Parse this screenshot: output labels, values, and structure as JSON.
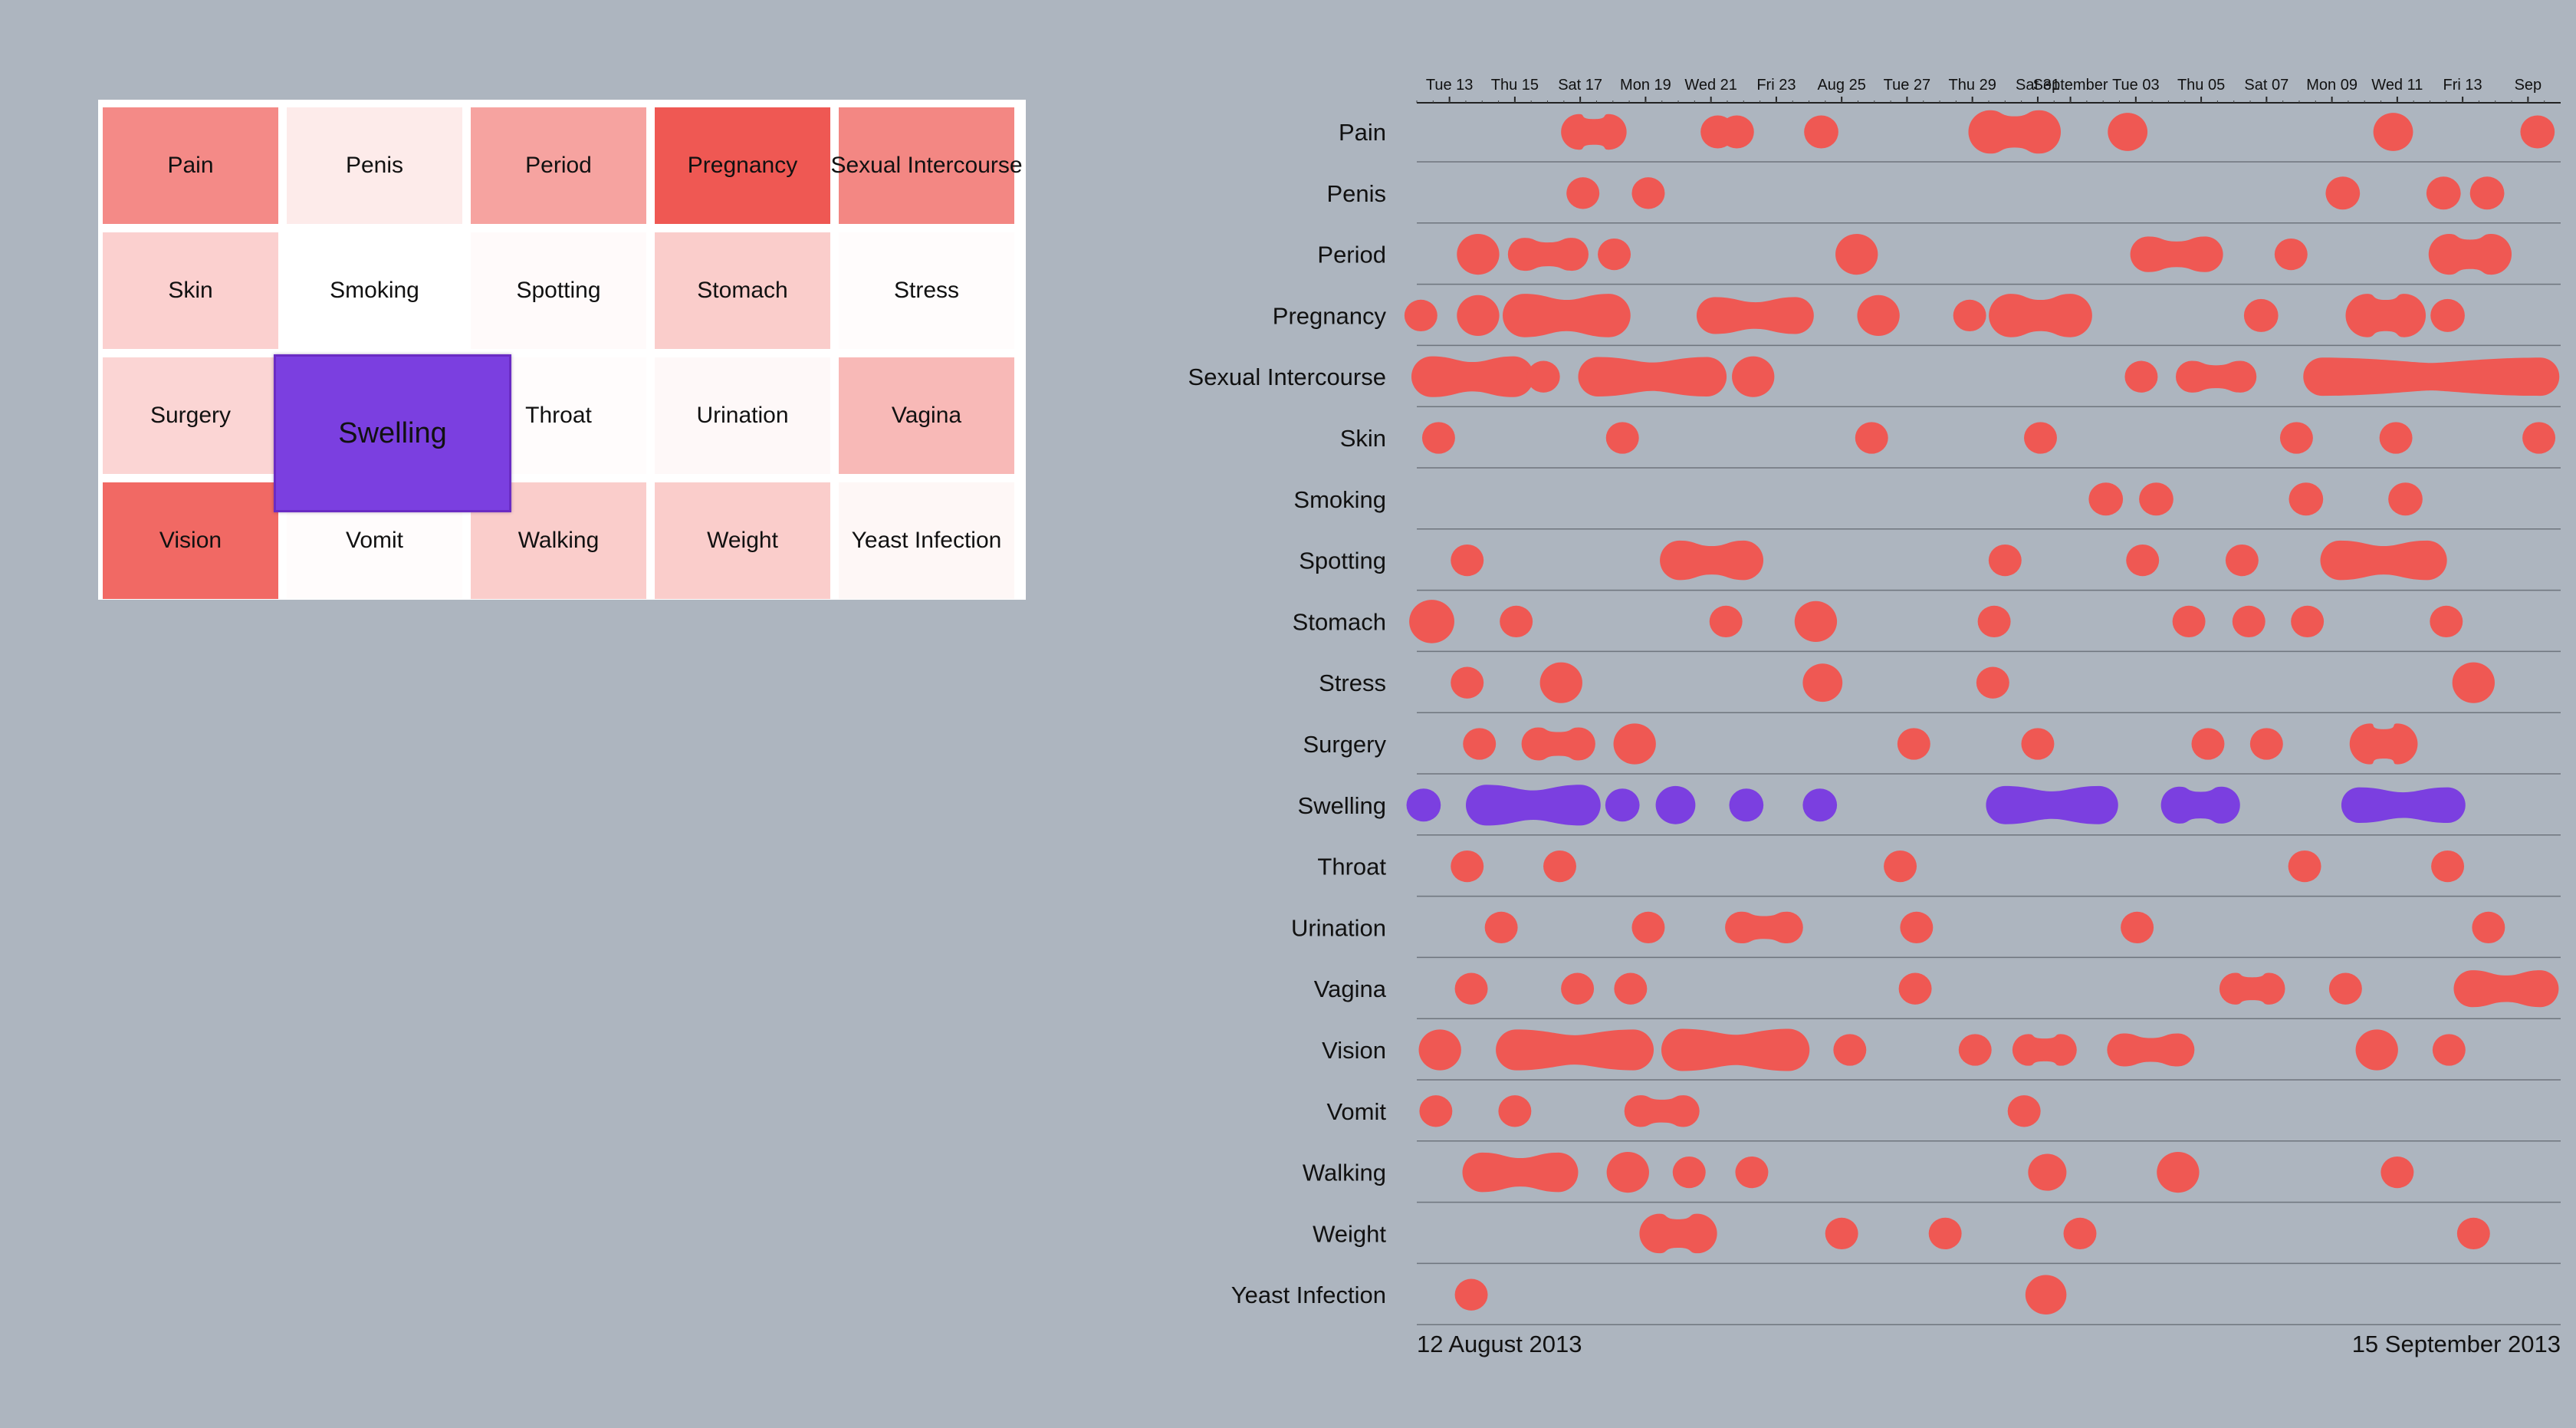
{
  "colors": {
    "background": "#adb5bf",
    "event": "#ef5853",
    "highlight": "#7b3fe0"
  },
  "chart_data": [
    {
      "type": "heatmap",
      "grid": "5 columns x 4 rows",
      "highlighted_category": "Swelling",
      "cells": [
        {
          "label": "Pain",
          "intensity": 0.7
        },
        {
          "label": "Penis",
          "intensity": 0.12
        },
        {
          "label": "Period",
          "intensity": 0.55
        },
        {
          "label": "Pregnancy",
          "intensity": 1.0
        },
        {
          "label": "Sexual Intercourse",
          "intensity": 0.72
        },
        {
          "label": "Skin",
          "intensity": 0.28
        },
        {
          "label": "Smoking",
          "intensity": 0.0
        },
        {
          "label": "Spotting",
          "intensity": 0.03
        },
        {
          "label": "Stomach",
          "intensity": 0.3
        },
        {
          "label": "Stress",
          "intensity": 0.02
        },
        {
          "label": "Surgery",
          "intensity": 0.25
        },
        {
          "label": "Swelling",
          "intensity": 0.5
        },
        {
          "label": "Throat",
          "intensity": 0.02
        },
        {
          "label": "Urination",
          "intensity": 0.04
        },
        {
          "label": "Vagina",
          "intensity": 0.42
        },
        {
          "label": "Vision",
          "intensity": 0.9
        },
        {
          "label": "Vomit",
          "intensity": 0.02
        },
        {
          "label": "Walking",
          "intensity": 0.3
        },
        {
          "label": "Weight",
          "intensity": 0.3
        },
        {
          "label": "Yeast Infection",
          "intensity": 0.05
        }
      ]
    },
    {
      "type": "scatter",
      "x_axis": "date",
      "xlim": [
        "2013-08-12",
        "2013-09-15"
      ],
      "start_label": "12 August 2013",
      "end_label": "15 September 2013",
      "ticks": [
        {
          "date": "2013-08-13",
          "label": "Tue 13"
        },
        {
          "date": "2013-08-15",
          "label": "Thu 15"
        },
        {
          "date": "2013-08-17",
          "label": "Sat 17"
        },
        {
          "date": "2013-08-19",
          "label": "Mon 19"
        },
        {
          "date": "2013-08-21",
          "label": "Wed 21"
        },
        {
          "date": "2013-08-23",
          "label": "Fri 23"
        },
        {
          "date": "2013-08-25",
          "label": "Aug 25"
        },
        {
          "date": "2013-08-27",
          "label": "Tue 27"
        },
        {
          "date": "2013-08-29",
          "label": "Thu 29"
        },
        {
          "date": "2013-08-31",
          "label": "Sat 31"
        },
        {
          "date": "2013-09-01",
          "label": "September"
        },
        {
          "date": "2013-09-03",
          "label": "Tue 03"
        },
        {
          "date": "2013-09-05",
          "label": "Thu 05"
        },
        {
          "date": "2013-09-07",
          "label": "Sat 07"
        },
        {
          "date": "2013-09-09",
          "label": "Mon 09"
        },
        {
          "date": "2013-09-11",
          "label": "Wed 11"
        },
        {
          "date": "2013-09-13",
          "label": "Fri 13"
        },
        {
          "date": "2013-09-15",
          "label": "Sep"
        }
      ],
      "series": [
        {
          "name": "Pain",
          "events": [
            {
              "start": "2013-08-16T23:00",
              "end": "2013-08-17T21:00",
              "size": 0.6
            },
            {
              "start": "2013-08-21T05:00",
              "size": 0.5
            },
            {
              "start": "2013-08-21T19:00",
              "size": 0.5
            },
            {
              "start": "2013-08-24T09:00",
              "size": 0.5
            },
            {
              "start": "2013-08-29T13:00",
              "end": "2013-08-31T01:00",
              "size": 0.9
            },
            {
              "start": "2013-09-02T18:00",
              "size": 0.7
            },
            {
              "start": "2013-09-10T21:00",
              "size": 0.7
            },
            {
              "start": "2013-09-15T07:00",
              "size": 0.5
            }
          ]
        },
        {
          "name": "Penis",
          "events": [
            {
              "start": "2013-08-17T02:00",
              "size": 0.45
            },
            {
              "start": "2013-08-19T02:00",
              "size": 0.45
            },
            {
              "start": "2013-09-09T08:00",
              "size": 0.5
            },
            {
              "start": "2013-09-12T10:00",
              "size": 0.5
            },
            {
              "start": "2013-09-13T18:00",
              "size": 0.5
            }
          ]
        },
        {
          "name": "Period",
          "events": [
            {
              "start": "2013-08-13T21:00",
              "size": 0.8
            },
            {
              "start": "2013-08-15T07:00",
              "end": "2013-08-16T18:00",
              "size": 0.5
            },
            {
              "start": "2013-08-18T01:00",
              "size": 0.45
            },
            {
              "start": "2013-08-25T11:00",
              "size": 0.8
            },
            {
              "start": "2013-09-03T09:00",
              "end": "2013-09-05T03:00",
              "size": 0.6
            },
            {
              "start": "2013-09-07T18:00",
              "size": 0.45
            },
            {
              "start": "2013-09-12T14:00",
              "end": "2013-09-13T21:00",
              "size": 0.8
            }
          ]
        },
        {
          "name": "Pregnancy",
          "events": [
            {
              "start": "2013-08-12T03:00",
              "size": 0.45
            },
            {
              "start": "2013-08-13T21:00",
              "size": 0.8
            },
            {
              "start": "2013-08-15T07:00",
              "end": "2013-08-17T21:00",
              "size": 0.9
            },
            {
              "start": "2013-08-21T03:00",
              "end": "2013-08-23T14:00",
              "size": 0.65
            },
            {
              "start": "2013-08-26T03:00",
              "size": 0.8
            },
            {
              "start": "2013-08-28T22:00",
              "size": 0.45
            },
            {
              "start": "2013-08-30T04:00",
              "end": "2013-09-01T00:00",
              "size": 0.9
            },
            {
              "start": "2013-09-06T20:00",
              "size": 0.5
            },
            {
              "start": "2013-09-10T02:00",
              "end": "2013-09-11T05:00",
              "size": 0.9
            },
            {
              "start": "2013-09-12T13:00",
              "size": 0.5
            }
          ]
        },
        {
          "name": "Sexual Intercourse",
          "events": [
            {
              "start": "2013-08-12T11:00",
              "end": "2013-08-14T23:00",
              "size": 0.8
            },
            {
              "start": "2013-08-15T21:00",
              "size": 0.45
            },
            {
              "start": "2013-08-17T13:00",
              "end": "2013-08-20T21:00",
              "size": 0.75
            },
            {
              "start": "2013-08-22T07:00",
              "size": 0.8
            },
            {
              "start": "2013-09-03T04:00",
              "size": 0.45
            },
            {
              "start": "2013-09-04T17:00",
              "end": "2013-09-06T05:00",
              "size": 0.45
            },
            {
              "start": "2013-09-08T17:00",
              "end": "2013-09-15T09:00",
              "size": 0.7
            }
          ]
        },
        {
          "name": "Skin",
          "events": [
            {
              "start": "2013-08-12T16:00",
              "size": 0.45
            },
            {
              "start": "2013-08-18T07:00",
              "size": 0.45
            },
            {
              "start": "2013-08-25T22:00",
              "size": 0.45
            },
            {
              "start": "2013-08-31T02:00",
              "size": 0.45
            },
            {
              "start": "2013-09-07T22:00",
              "size": 0.45
            },
            {
              "start": "2013-09-10T23:00",
              "size": 0.45
            },
            {
              "start": "2013-09-15T08:00",
              "size": 0.45
            }
          ]
        },
        {
          "name": "Smoking",
          "events": [
            {
              "start": "2013-09-02T02:00",
              "size": 0.5
            },
            {
              "start": "2013-09-03T15:00",
              "size": 0.5
            },
            {
              "start": "2013-09-08T05:00",
              "size": 0.5
            },
            {
              "start": "2013-09-11T06:00",
              "size": 0.5
            }
          ]
        },
        {
          "name": "Spotting",
          "events": [
            {
              "start": "2013-08-13T13:00",
              "size": 0.45
            },
            {
              "start": "2013-08-20T01:00",
              "end": "2013-08-22T00:00",
              "size": 0.75
            },
            {
              "start": "2013-08-30T00:00",
              "size": 0.45
            },
            {
              "start": "2013-09-03T05:00",
              "size": 0.45
            },
            {
              "start": "2013-09-06T06:00",
              "size": 0.45
            },
            {
              "start": "2013-09-09T06:00",
              "end": "2013-09-11T22:00",
              "size": 0.75
            }
          ]
        },
        {
          "name": "Stomach",
          "events": [
            {
              "start": "2013-08-12T11:00",
              "size": 0.9
            },
            {
              "start": "2013-08-15T01:00",
              "size": 0.45
            },
            {
              "start": "2013-08-21T11:00",
              "size": 0.45
            },
            {
              "start": "2013-08-24T05:00",
              "size": 0.8
            },
            {
              "start": "2013-08-29T16:00",
              "size": 0.45
            },
            {
              "start": "2013-09-04T15:00",
              "size": 0.45
            },
            {
              "start": "2013-09-06T11:00",
              "size": 0.45
            },
            {
              "start": "2013-09-08T06:00",
              "size": 0.45
            },
            {
              "start": "2013-09-12T12:00",
              "size": 0.45
            }
          ]
        },
        {
          "name": "Stress",
          "events": [
            {
              "start": "2013-08-13T13:00",
              "size": 0.45
            },
            {
              "start": "2013-08-16T10:00",
              "size": 0.8
            },
            {
              "start": "2013-08-24T10:00",
              "size": 0.7
            },
            {
              "start": "2013-08-29T15:00",
              "size": 0.45
            },
            {
              "start": "2013-09-13T08:00",
              "size": 0.8
            }
          ]
        },
        {
          "name": "Surgery",
          "events": [
            {
              "start": "2013-08-13T22:00",
              "size": 0.45
            },
            {
              "start": "2013-08-15T17:00",
              "end": "2013-08-16T23:00",
              "size": 0.5
            },
            {
              "start": "2013-08-18T16:00",
              "size": 0.8
            },
            {
              "start": "2013-08-27T05:00",
              "size": 0.45
            },
            {
              "start": "2013-08-31T00:00",
              "size": 0.45
            },
            {
              "start": "2013-09-05T05:00",
              "size": 0.45
            },
            {
              "start": "2013-09-07T00:00",
              "size": 0.45
            },
            {
              "start": "2013-09-10T04:00",
              "end": "2013-09-11T00:00",
              "size": 0.8
            }
          ]
        },
        {
          "name": "Swelling",
          "events": [
            {
              "start": "2013-08-12T05:00",
              "size": 0.5
            },
            {
              "start": "2013-08-14T03:00",
              "end": "2013-08-17T00:00",
              "size": 0.8
            },
            {
              "start": "2013-08-18T07:00",
              "size": 0.5
            },
            {
              "start": "2013-08-19T22:00",
              "size": 0.7
            },
            {
              "start": "2013-08-22T02:00",
              "size": 0.5
            },
            {
              "start": "2013-08-24T08:00",
              "size": 0.5
            },
            {
              "start": "2013-08-30T00:00",
              "end": "2013-09-01T21:00",
              "size": 0.7
            },
            {
              "start": "2013-09-04T08:00",
              "end": "2013-09-05T15:00",
              "size": 0.65
            },
            {
              "start": "2013-09-09T20:00",
              "end": "2013-09-12T13:00",
              "size": 0.6
            }
          ]
        },
        {
          "name": "Throat",
          "events": [
            {
              "start": "2013-08-13T13:00",
              "size": 0.45
            },
            {
              "start": "2013-08-16T09:00",
              "size": 0.45
            },
            {
              "start": "2013-08-26T19:00",
              "size": 0.45
            },
            {
              "start": "2013-09-08T04:00",
              "size": 0.45
            },
            {
              "start": "2013-09-12T13:00",
              "size": 0.45
            }
          ]
        },
        {
          "name": "Urination",
          "events": [
            {
              "start": "2013-08-14T14:00",
              "size": 0.45
            },
            {
              "start": "2013-08-19T02:00",
              "size": 0.45
            },
            {
              "start": "2013-08-21T22:00",
              "end": "2013-08-23T08:00",
              "size": 0.45
            },
            {
              "start": "2013-08-27T07:00",
              "size": 0.45
            },
            {
              "start": "2013-09-03T01:00",
              "size": 0.45
            },
            {
              "start": "2013-09-13T19:00",
              "size": 0.45
            }
          ]
        },
        {
          "name": "Vagina",
          "events": [
            {
              "start": "2013-08-13T16:00",
              "size": 0.45
            },
            {
              "start": "2013-08-16T22:00",
              "size": 0.45
            },
            {
              "start": "2013-08-18T13:00",
              "size": 0.45
            },
            {
              "start": "2013-08-27T06:00",
              "size": 0.45
            },
            {
              "start": "2013-09-06T01:00",
              "end": "2013-09-07T02:00",
              "size": 0.45
            },
            {
              "start": "2013-09-09T10:00",
              "size": 0.45
            },
            {
              "start": "2013-09-13T07:00",
              "end": "2013-09-15T09:00",
              "size": 0.65
            }
          ]
        },
        {
          "name": "Vision",
          "events": [
            {
              "start": "2013-08-12T17:00",
              "size": 0.8
            },
            {
              "start": "2013-08-15T01:00",
              "end": "2013-08-18T15:00",
              "size": 0.8
            },
            {
              "start": "2013-08-20T03:00",
              "end": "2013-08-23T09:00",
              "size": 0.85
            },
            {
              "start": "2013-08-25T06:00",
              "size": 0.45
            },
            {
              "start": "2013-08-29T02:00",
              "size": 0.45
            },
            {
              "start": "2013-08-30T17:00",
              "end": "2013-08-31T17:00",
              "size": 0.45
            },
            {
              "start": "2013-09-02T15:00",
              "end": "2013-09-04T07:00",
              "size": 0.5
            },
            {
              "start": "2013-09-10T09:00",
              "size": 0.8
            },
            {
              "start": "2013-09-12T14:00",
              "size": 0.45
            }
          ]
        },
        {
          "name": "Vomit",
          "events": [
            {
              "start": "2013-08-12T14:00",
              "size": 0.45
            },
            {
              "start": "2013-08-15T00:00",
              "size": 0.45
            },
            {
              "start": "2013-08-18T20:00",
              "end": "2013-08-20T04:00",
              "size": 0.45
            },
            {
              "start": "2013-08-30T14:00",
              "size": 0.45
            }
          ]
        },
        {
          "name": "Walking",
          "events": [
            {
              "start": "2013-08-14T00:00",
              "end": "2013-08-16T08:00",
              "size": 0.75
            },
            {
              "start": "2013-08-18T11:00",
              "size": 0.8
            },
            {
              "start": "2013-08-20T08:00",
              "size": 0.45
            },
            {
              "start": "2013-08-22T06:00",
              "size": 0.45
            },
            {
              "start": "2013-08-31T07:00",
              "size": 0.65
            },
            {
              "start": "2013-09-04T07:00",
              "size": 0.8
            },
            {
              "start": "2013-09-11T00:00",
              "size": 0.45
            }
          ]
        },
        {
          "name": "Weight",
          "events": [
            {
              "start": "2013-08-19T10:00",
              "end": "2013-08-20T14:00",
              "size": 0.75
            },
            {
              "start": "2013-08-25T00:00",
              "size": 0.45
            },
            {
              "start": "2013-08-28T04:00",
              "size": 0.45
            },
            {
              "start": "2013-09-01T07:00",
              "size": 0.45
            },
            {
              "start": "2013-09-13T08:00",
              "size": 0.45
            }
          ]
        },
        {
          "name": "Yeast Infection",
          "events": [
            {
              "start": "2013-08-13T16:00",
              "size": 0.45
            },
            {
              "start": "2013-08-31T06:00",
              "size": 0.75
            }
          ]
        }
      ]
    }
  ]
}
